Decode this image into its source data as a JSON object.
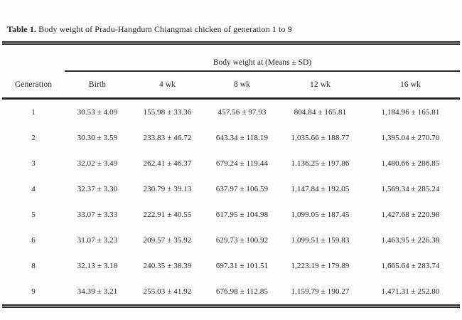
{
  "title": {
    "prefix": "Table 1.",
    "text": " Body weight of Pradu-Hangdum Chiangmai chicken of generation 1 to 9"
  },
  "table": {
    "spanner": "Body weight at (Means ± SD)",
    "columns": [
      "Generation",
      "Birth",
      "4 wk",
      "8 wk",
      "12 wk",
      "16 wk"
    ],
    "rows": [
      [
        "1",
        "30.53 ± 4.09",
        "155.98 ± 33.36",
        "457.56 ± 97.93",
        "804.84 ± 165.81",
        "1,184.96 ± 165.81"
      ],
      [
        "2",
        "30.30 ± 3.59",
        "233.83 ± 46.72",
        "643.34 ± 118.19",
        "1,035.66 ± 188.77",
        "1,395.04 ± 270.70"
      ],
      [
        "3",
        "32.02 ± 3.49",
        "262.41 ± 46.37",
        "679.24 ± 119.44",
        "1.136.25 ± 197.86",
        "1,480.66 ± 286.85"
      ],
      [
        "4",
        "32.37 ± 3.30",
        "230.79 ± 39.13",
        "637.97 ± 106.59",
        "1,147.84 ± 192.05",
        "1,569.34 ± 285.24"
      ],
      [
        "5",
        "33.07 ± 3.33",
        "222.91 ± 40.55",
        "617.95 ± 104.98",
        "1,099.05 ± 187.45",
        "1,427.68 ± 220.98"
      ],
      [
        "6",
        "31.07 ± 3.23",
        "209.57 ± 35.92",
        "629.73 ± 100.92",
        "1.099.51 ± 159.83",
        "1,463.95 ± 226.38"
      ],
      [
        "8",
        "32.13 ± 3.18",
        "240.35 ± 38.39",
        "697.31 ± 101.51",
        "1,223.19 ± 179.89",
        "1,665.64 ± 283.74"
      ],
      [
        "9",
        "34.39 ± 3.21",
        "255.03 ± 41.92",
        "676.98 ± 112.85",
        "1,159.79 ± 190.27",
        "1,471.31 ± 252.80"
      ]
    ]
  },
  "colors": {
    "background": "#fdfdfd",
    "text": "#262626",
    "rule": "#2b2b2b"
  }
}
